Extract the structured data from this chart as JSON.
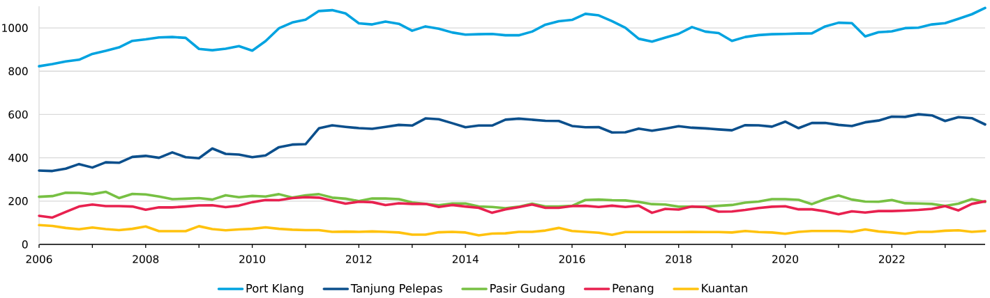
{
  "chart_data": {
    "type": "line",
    "x": [
      2006,
      2006.25,
      2006.5,
      2006.75,
      2007,
      2007.25,
      2007.5,
      2007.75,
      2008,
      2008.25,
      2008.5,
      2008.75,
      2009,
      2009.25,
      2009.5,
      2009.75,
      2010,
      2010.25,
      2010.5,
      2010.75,
      2011,
      2011.25,
      2011.5,
      2011.75,
      2012,
      2012.25,
      2012.5,
      2012.75,
      2013,
      2013.25,
      2013.5,
      2013.75,
      2014,
      2014.25,
      2014.5,
      2014.75,
      2015,
      2015.25,
      2015.5,
      2015.75,
      2016,
      2016.25,
      2016.5,
      2016.75,
      2017,
      2017.25,
      2017.5,
      2017.75,
      2018,
      2018.25,
      2018.5,
      2018.75,
      2019,
      2019.25,
      2019.5,
      2019.75,
      2020,
      2020.25,
      2020.5,
      2020.75,
      2021,
      2021.25,
      2021.5,
      2021.75,
      2022,
      2022.25,
      2022.5,
      2022.75,
      2023,
      2023.25,
      2023.5,
      2023.75
    ],
    "series": [
      {
        "name": "Port Klang",
        "color": "#00a3e0",
        "values": [
          823,
          833,
          845,
          853,
          880,
          894,
          910,
          940,
          947,
          956,
          958,
          954,
          903,
          897,
          904,
          916,
          895,
          939,
          998,
          1025,
          1038,
          1078,
          1082,
          1067,
          1021,
          1016,
          1029,
          1019,
          987,
          1007,
          996,
          979,
          969,
          971,
          972,
          966,
          966,
          983,
          1015,
          1031,
          1037,
          1065,
          1058,
          1031,
          1001,
          950,
          937,
          955,
          973,
          1004,
          983,
          976,
          940,
          958,
          967,
          971,
          972,
          974,
          975,
          1007,
          1024,
          1022,
          961,
          980,
          984,
          999,
          1001,
          1016,
          1022,
          1042,
          1063,
          1092
        ]
      },
      {
        "name": "Tanjung Pelepas",
        "color": "#0b4f8c",
        "values": [
          341,
          339,
          350,
          371,
          355,
          379,
          377,
          404,
          409,
          400,
          425,
          403,
          398,
          443,
          418,
          415,
          403,
          411,
          449,
          461,
          463,
          536,
          550,
          543,
          537,
          534,
          543,
          552,
          549,
          582,
          578,
          560,
          541,
          549,
          549,
          576,
          581,
          576,
          571,
          570,
          547,
          541,
          542,
          517,
          518,
          535,
          525,
          535,
          546,
          539,
          536,
          531,
          527,
          551,
          550,
          544,
          567,
          537,
          561,
          561,
          552,
          547,
          564,
          572,
          590,
          589,
          601,
          596,
          570,
          588,
          583,
          554
        ]
      },
      {
        "name": "Pasir Gudang",
        "color": "#77c043",
        "values": [
          220,
          223,
          239,
          238,
          232,
          243,
          214,
          233,
          231,
          221,
          209,
          211,
          214,
          207,
          227,
          218,
          224,
          221,
          232,
          216,
          227,
          232,
          216,
          211,
          200,
          212,
          212,
          209,
          194,
          187,
          181,
          189,
          189,
          175,
          173,
          167,
          174,
          188,
          175,
          175,
          178,
          205,
          207,
          204,
          203,
          196,
          186,
          184,
          174,
          174,
          174,
          178,
          182,
          193,
          198,
          209,
          209,
          206,
          186,
          209,
          226,
          207,
          198,
          197,
          205,
          190,
          189,
          187,
          178,
          188,
          209,
          196
        ]
      },
      {
        "name": "Penang",
        "color": "#e8214f",
        "values": [
          132,
          124,
          150,
          175,
          184,
          177,
          177,
          175,
          160,
          171,
          171,
          175,
          180,
          181,
          172,
          179,
          195,
          205,
          204,
          214,
          218,
          216,
          202,
          188,
          197,
          195,
          182,
          190,
          187,
          187,
          173,
          182,
          175,
          169,
          146,
          162,
          172,
          184,
          169,
          169,
          177,
          178,
          173,
          179,
          173,
          179,
          146,
          164,
          161,
          175,
          172,
          151,
          152,
          159,
          168,
          174,
          176,
          162,
          162,
          153,
          139,
          153,
          147,
          154,
          154,
          156,
          159,
          164,
          177,
          157,
          187,
          199
        ]
      },
      {
        "name": "Kuantan",
        "color": "#ffc20e",
        "values": [
          89,
          85,
          76,
          70,
          78,
          71,
          66,
          72,
          83,
          61,
          61,
          61,
          84,
          71,
          65,
          69,
          72,
          79,
          72,
          68,
          66,
          66,
          58,
          59,
          58,
          60,
          58,
          55,
          45,
          45,
          56,
          58,
          55,
          42,
          50,
          51,
          58,
          58,
          64,
          76,
          62,
          58,
          54,
          44,
          57,
          57,
          57,
          57,
          57,
          58,
          57,
          57,
          55,
          62,
          57,
          55,
          49,
          58,
          62,
          62,
          62,
          58,
          69,
          60,
          55,
          49,
          58,
          58,
          63,
          65,
          58,
          62
        ]
      }
    ],
    "xlim": [
      2006,
      2023.75
    ],
    "ylim": [
      0,
      1100
    ],
    "xticks": [
      2006,
      {
        "value": 2007,
        "label": null
      },
      2008,
      {
        "value": 2009,
        "label": null
      },
      2010,
      {
        "value": 2011,
        "label": null
      },
      2012,
      {
        "value": 2013,
        "label": null
      },
      2014,
      {
        "value": 2015,
        "label": null
      },
      2016,
      {
        "value": 2017,
        "label": null
      },
      2018,
      {
        "value": 2019,
        "label": null
      },
      2020,
      {
        "value": 2021,
        "label": null
      },
      2022,
      {
        "value": 2023,
        "label": null
      }
    ],
    "yticks": [
      0,
      200,
      400,
      600,
      800,
      1000
    ],
    "grid": "y",
    "legend": "bottom",
    "line_style": "solid"
  }
}
